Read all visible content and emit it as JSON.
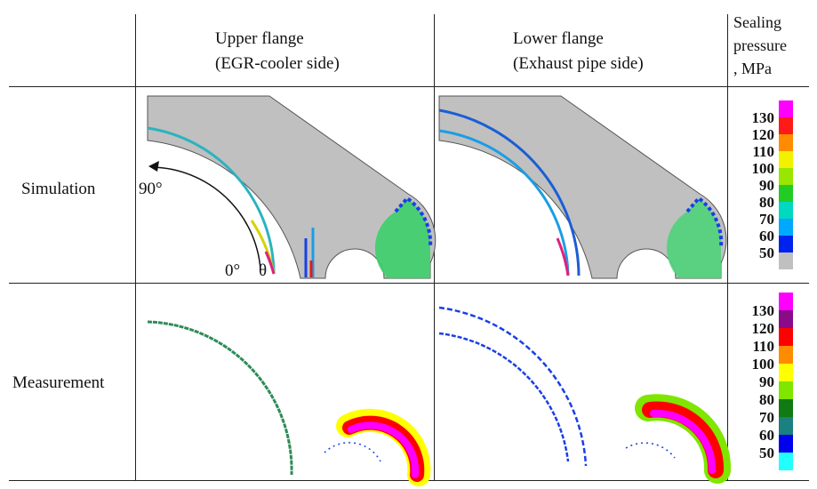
{
  "table": {
    "columns": [
      "Upper flange\n(EGR-cooler side)",
      "Lower flange\n(Exhaust pipe side)"
    ],
    "col_upper": {
      "line1": "Upper flange",
      "line2": "(EGR-cooler side)"
    },
    "col_lower": {
      "line1": "Lower flange",
      "line2": "(Exhaust pipe side)"
    },
    "unit_header": {
      "line1": "Sealing",
      "line2": "pressure",
      "line3": ", MPa"
    },
    "rows": [
      "Simulation",
      "Measurement"
    ]
  },
  "annotations": {
    "angle_90": "90°",
    "angle_0": "0°",
    "theta": "θ"
  },
  "legend_simulation": {
    "ticks": [
      "130",
      "120",
      "110",
      "100",
      "90",
      "80",
      "70",
      "60",
      "50"
    ],
    "colors": [
      "#ff00ff",
      "#ff1a1a",
      "#ff8c00",
      "#f2f200",
      "#99e600",
      "#22cc22",
      "#00d8c0",
      "#00a8ff",
      "#0022ee",
      "#c0c0c0"
    ]
  },
  "legend_measurement": {
    "ticks": [
      "130",
      "120",
      "110",
      "100",
      "90",
      "80",
      "70",
      "60",
      "50"
    ],
    "colors": [
      "#ff00ff",
      "#8a0a8a",
      "#ff0000",
      "#ff8c00",
      "#ffff00",
      "#7fe600",
      "#127a12",
      "#1a8080",
      "#0000ee",
      "#22ffff"
    ]
  }
}
